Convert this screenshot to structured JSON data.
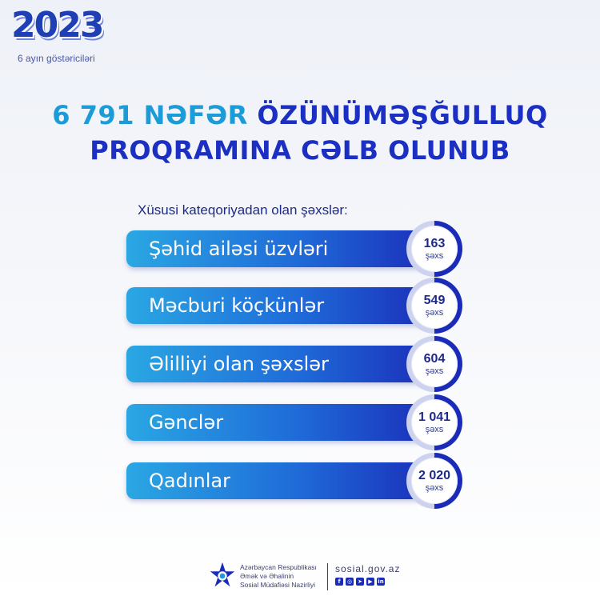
{
  "badge": {
    "year": "2023",
    "subtitle": "6 ayın göstəriciləri"
  },
  "headline": {
    "number": "6 791 NƏFƏR",
    "line1_rest": "ÖZÜNÜMƏŞĞULLUQ",
    "line2": "PROQRAMINA CƏLB OLUNUB"
  },
  "subtitle": "Xüsusi kateqoriyadan olan şəxslər:",
  "categories": [
    {
      "label": "Şəhid ailəsi üzvləri",
      "count": "163",
      "unit": "şəxs"
    },
    {
      "label": "Məcburi köçkünlər",
      "count": "549",
      "unit": "şəxs"
    },
    {
      "label": "Əlilliyi olan şəxslər",
      "count": "604",
      "unit": "şəxs"
    },
    {
      "label": "Gənclər",
      "count": "1 041",
      "unit": "şəxs"
    },
    {
      "label": "Qadınlar",
      "count": "2 020",
      "unit": "şəxs"
    }
  ],
  "footer": {
    "org_line1": "Azərbaycan Respublikası",
    "org_line2": "Əmək və Əhalinin",
    "org_line3": "Sosial Müdafiəsi Nazirliyi",
    "website": "sosial.gov.az",
    "socials": [
      "facebook-icon",
      "instagram-icon",
      "telegram-icon",
      "youtube-icon",
      "linkedin-icon"
    ]
  },
  "colors": {
    "primary": "#1a2bb8",
    "accent": "#1c9bd9",
    "ring_track": "#cdd3ee"
  }
}
